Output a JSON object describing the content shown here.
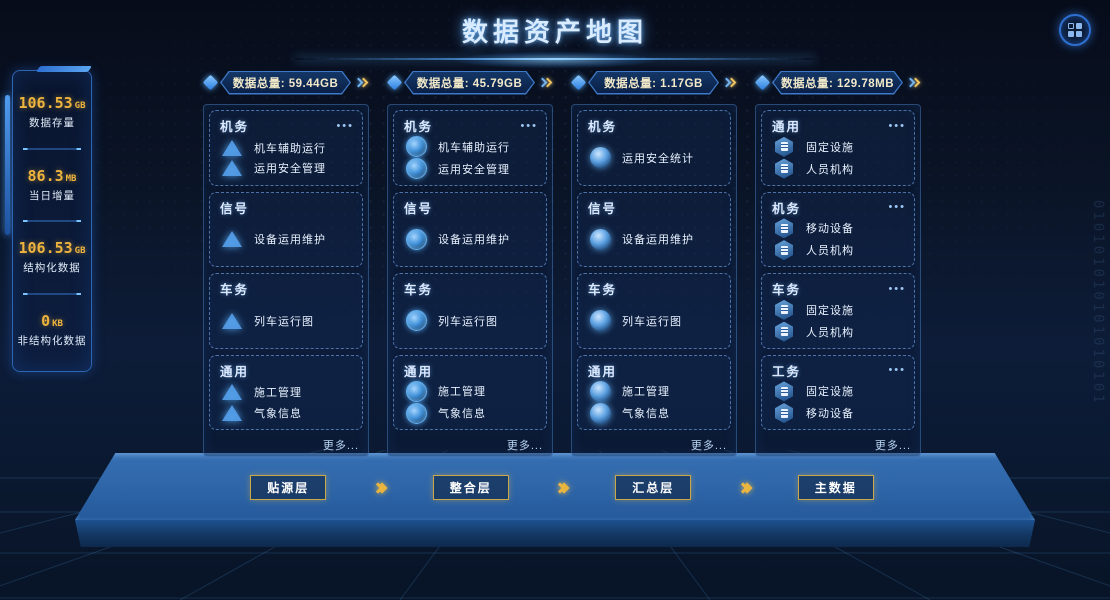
{
  "page": {
    "title": "数据资产地图"
  },
  "header": {
    "apps_button_icon": "grid-icon"
  },
  "sidebar": {
    "stats": [
      {
        "value": "106.53",
        "unit": "GB",
        "label": "数据存量"
      },
      {
        "value": "86.3",
        "unit": "MB",
        "label": "当日增量"
      },
      {
        "value": "106.53",
        "unit": "GB",
        "label": "结构化数据"
      },
      {
        "value": "0",
        "unit": "KB",
        "label": "非结构化数据"
      }
    ]
  },
  "columns": [
    {
      "total_label": "数据总量: 59.44GB",
      "icon": "pyramid-icon",
      "more_label": "更多...",
      "panels": [
        {
          "title": "机务",
          "has_menu": true,
          "items": [
            "机车辅助运行",
            "运用安全管理"
          ]
        },
        {
          "title": "信号",
          "has_menu": false,
          "items": [
            "设备运用维护"
          ]
        },
        {
          "title": "车务",
          "has_menu": false,
          "items": [
            "列车运行图"
          ]
        },
        {
          "title": "通用",
          "has_menu": false,
          "items": [
            "施工管理",
            "气象信息"
          ]
        }
      ]
    },
    {
      "total_label": "数据总量: 45.79GB",
      "icon": "ring-icon",
      "more_label": "更多...",
      "panels": [
        {
          "title": "机务",
          "has_menu": true,
          "items": [
            "机车辅助运行",
            "运用安全管理"
          ]
        },
        {
          "title": "信号",
          "has_menu": false,
          "items": [
            "设备运用维护"
          ]
        },
        {
          "title": "车务",
          "has_menu": false,
          "items": [
            "列车运行图"
          ]
        },
        {
          "title": "通用",
          "has_menu": false,
          "items": [
            "施工管理",
            "气象信息"
          ]
        }
      ]
    },
    {
      "total_label": "数据总量: 1.17GB",
      "icon": "sphere-icon",
      "more_label": "更多...",
      "panels": [
        {
          "title": "机务",
          "has_menu": false,
          "items": [
            "运用安全统计"
          ]
        },
        {
          "title": "信号",
          "has_menu": false,
          "items": [
            "设备运用维护"
          ]
        },
        {
          "title": "车务",
          "has_menu": false,
          "items": [
            "列车运行图"
          ]
        },
        {
          "title": "通用",
          "has_menu": false,
          "items": [
            "施工管理",
            "气象信息"
          ]
        }
      ]
    },
    {
      "total_label": "数据总量: 129.78MB",
      "icon": "hexagon-icon",
      "more_label": "更多...",
      "panels": [
        {
          "title": "通用",
          "has_menu": true,
          "items": [
            "固定设施",
            "人员机构"
          ]
        },
        {
          "title": "机务",
          "has_menu": true,
          "items": [
            "移动设备",
            "人员机构"
          ]
        },
        {
          "title": "车务",
          "has_menu": true,
          "items": [
            "固定设施",
            "人员机构"
          ]
        },
        {
          "title": "工务",
          "has_menu": true,
          "items": [
            "固定设施",
            "移动设备"
          ]
        }
      ]
    }
  ],
  "flow": {
    "steps": [
      {
        "label": "贴源层"
      },
      {
        "label": "整合层"
      },
      {
        "label": "汇总层"
      },
      {
        "label": "主数据"
      }
    ],
    "separator_icon": "double-chevron-icon"
  },
  "decoration": {
    "binary": "010101010101010101"
  },
  "colors": {
    "accent_gold": "#eeb43e",
    "accent_blue": "#4da3f5",
    "panel_border": "#82b9ff",
    "badge_text": "#f2e9c9",
    "flow_border": "#c9a84c",
    "platform_blue": "#2f67aa"
  }
}
